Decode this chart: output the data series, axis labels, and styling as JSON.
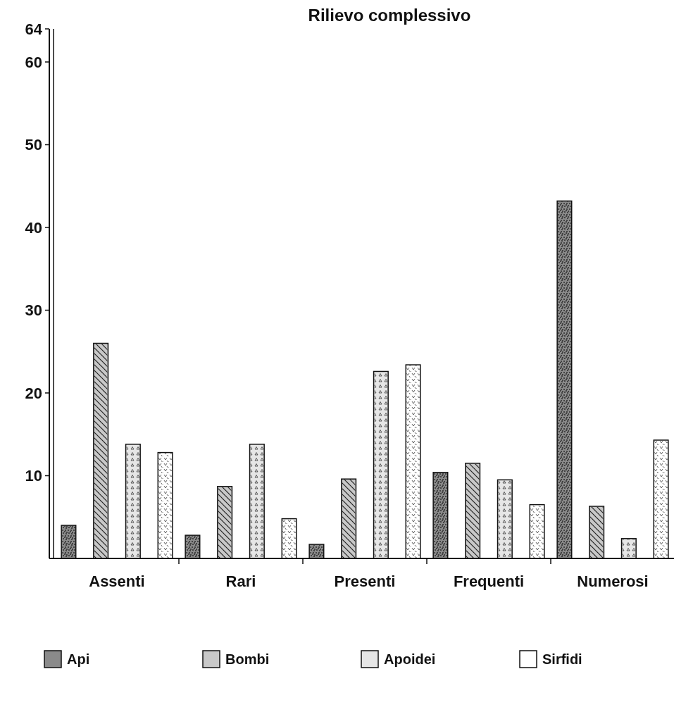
{
  "chart_data": {
    "type": "bar",
    "title": "Rilievo complessivo",
    "categories": [
      "Assenti",
      "Rari",
      "Presenti",
      "Frequenti",
      "Numerosi"
    ],
    "series": [
      {
        "name": "Api",
        "color": "#8a8a8a",
        "values": [
          4.0,
          2.8,
          1.7,
          10.4,
          43.2
        ]
      },
      {
        "name": "Bombi",
        "color": "#c8c8c8",
        "values": [
          26.0,
          8.7,
          9.6,
          11.5,
          6.3
        ]
      },
      {
        "name": "Apoidei",
        "color": "#e6e6e6",
        "values": [
          13.8,
          13.8,
          22.6,
          9.5,
          2.4
        ]
      },
      {
        "name": "Sirfidi",
        "color": "#ffffff",
        "values": [
          12.8,
          4.8,
          23.4,
          6.5,
          14.3
        ]
      }
    ],
    "ylim": [
      0,
      64
    ],
    "yticks": [
      10,
      20,
      30,
      40,
      50,
      60,
      64
    ],
    "grid": false,
    "legend": "bottom"
  }
}
